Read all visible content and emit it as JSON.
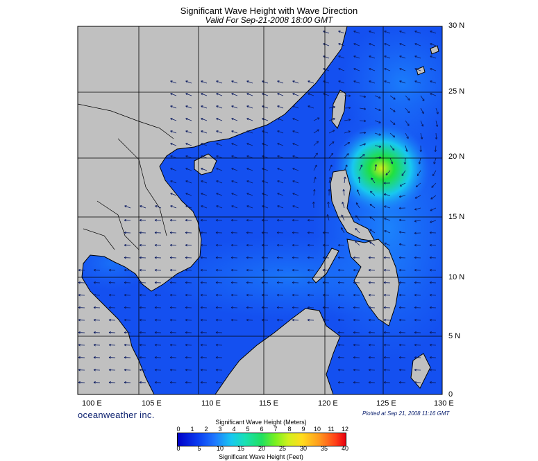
{
  "header": {
    "title": "Significant Wave Height with Wave Direction",
    "subtitle": "Valid For Sep-21-2008 18:00 GMT"
  },
  "map": {
    "lat_labels": [
      "30 N",
      "25 N",
      "20 N",
      "15 N",
      "10 N",
      "5 N",
      "0"
    ],
    "lon_labels": [
      "100 E",
      "105 E",
      "110 E",
      "115 E",
      "120 E",
      "125 E",
      "130 E"
    ],
    "land_color": "#c0c0c0",
    "ocean_base_color": "#1450f0",
    "peak_color": "#20e040",
    "arrow_color": "#0a1a60"
  },
  "footer": {
    "brand": "oceanweather inc.",
    "plotted": "Plotted at Sep 21, 2008 11:16 GMT"
  },
  "colorbar": {
    "title_meters": "Significant Wave Height (Meters)",
    "title_feet": "Significant Wave Height (Feet)",
    "meter_ticks": [
      "0",
      "1",
      "2",
      "3",
      "4",
      "5",
      "6",
      "7",
      "8",
      "9",
      "10",
      "11",
      "12"
    ],
    "feet_ticks": [
      "0",
      "5",
      "10",
      "15",
      "20",
      "25",
      "30",
      "35",
      "40"
    ]
  }
}
